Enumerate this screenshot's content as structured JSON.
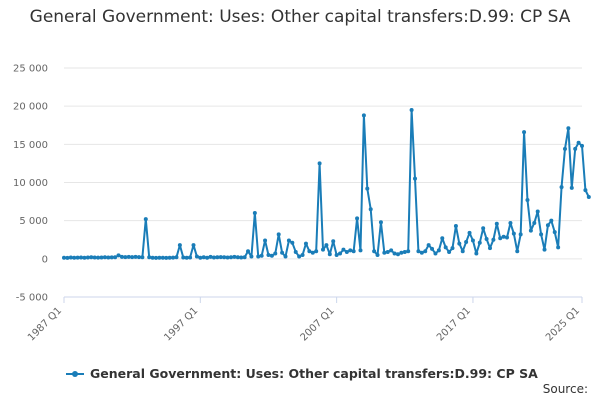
{
  "title": "General Government: Uses: Other capital transfers:D.99: CP SA",
  "source_label": "Source:",
  "chart_data": {
    "type": "line",
    "title": "General Government: Uses: Other capital transfers:D.99: CP SA",
    "xlabel": "",
    "ylabel": "",
    "ylim": [
      -5000,
      25000
    ],
    "yticks": [
      -5000,
      0,
      5000,
      10000,
      15000,
      20000,
      25000
    ],
    "ytick_labels": [
      "-5 000",
      "0",
      "5 000",
      "10 000",
      "15 000",
      "20 000",
      "25 000"
    ],
    "xticks": [
      "1987 Q1",
      "1997 Q1",
      "2007 Q1",
      "2017 Q1",
      "2025 Q1"
    ],
    "start_quarter": "1987 Q1",
    "grid": true,
    "legend_position": "bottom",
    "series_color": "#1a7db8",
    "series": [
      {
        "name": "General Government: Uses: Other capital transfers:D.99: CP SA",
        "values": [
          150,
          120,
          180,
          150,
          160,
          170,
          150,
          180,
          200,
          170,
          160,
          180,
          200,
          170,
          190,
          200,
          450,
          260,
          230,
          250,
          220,
          250,
          230,
          200,
          5200,
          200,
          150,
          120,
          140,
          150,
          130,
          150,
          160,
          200,
          1800,
          180,
          150,
          180,
          1800,
          300,
          150,
          200,
          150,
          250,
          180,
          200,
          220,
          200,
          180,
          200,
          250,
          200,
          180,
          200,
          1000,
          300,
          6000,
          300,
          400,
          2400,
          500,
          400,
          700,
          3200,
          800,
          300,
          2400,
          2100,
          900,
          300,
          500,
          2000,
          1000,
          800,
          1000,
          12500,
          1200,
          1800,
          600,
          2300,
          500,
          700,
          1200,
          900,
          1100,
          1000,
          5300,
          1100,
          18800,
          9200,
          6500,
          1000,
          500,
          4800,
          800,
          900,
          1100,
          700,
          600,
          800,
          900,
          1000,
          19500,
          10500,
          1000,
          800,
          1000,
          1800,
          1300,
          700,
          1100,
          2700,
          1500,
          900,
          1400,
          4300,
          2000,
          1000,
          2200,
          3400,
          2400,
          700,
          2100,
          4000,
          2600,
          1400,
          2500,
          4600,
          2700,
          2900,
          2800,
          4700,
          3300,
          1000,
          3200,
          16600,
          7700,
          3700,
          4700,
          6200,
          3200,
          1200,
          4400,
          5000,
          3500,
          1500,
          9400,
          14400,
          17100,
          9300,
          14400,
          15200,
          14800,
          9000,
          8100
        ]
      }
    ]
  }
}
